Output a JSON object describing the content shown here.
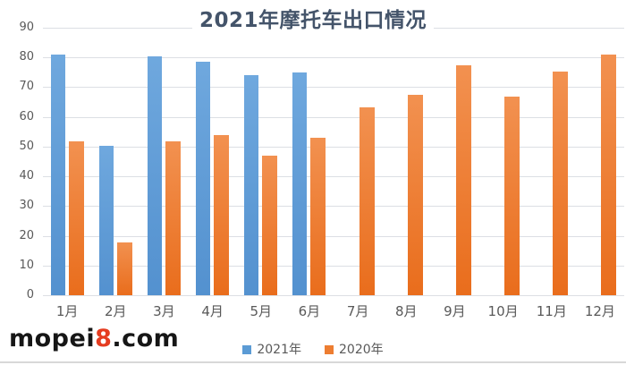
{
  "title": "2021年摩托车出口情况",
  "watermark": {
    "prefix": "mopei",
    "highlight": "8",
    "suffix": ".com",
    "highlight_color": "#e53c20"
  },
  "legend": [
    {
      "label": "2021年",
      "color": "#5b9bd5"
    },
    {
      "label": "2020年",
      "color": "#ed7d31"
    }
  ],
  "chart_data": {
    "type": "bar",
    "title": "2021年摩托车出口情况",
    "categories": [
      "1月",
      "2月",
      "3月",
      "4月",
      "5月",
      "6月",
      "7月",
      "8月",
      "9月",
      "10月",
      "11月",
      "12月"
    ],
    "series": [
      {
        "name": "2021年",
        "color": "#5b9bd5",
        "values": [
          81,
          50.4,
          80.3,
          78.6,
          74,
          74.9,
          null,
          null,
          null,
          null,
          null,
          null
        ]
      },
      {
        "name": "2020年",
        "color": "#ed7d31",
        "values": [
          51.9,
          17.9,
          51.9,
          53.9,
          47,
          53.1,
          63.1,
          67.5,
          77.5,
          66.9,
          75.4,
          80.9
        ]
      }
    ],
    "xlabel": "",
    "ylabel": "",
    "ylim": [
      0,
      90
    ],
    "yticks": [
      0,
      10,
      20,
      30,
      40,
      50,
      60,
      70,
      80,
      90
    ],
    "grid": true,
    "legend_position": "bottom"
  }
}
